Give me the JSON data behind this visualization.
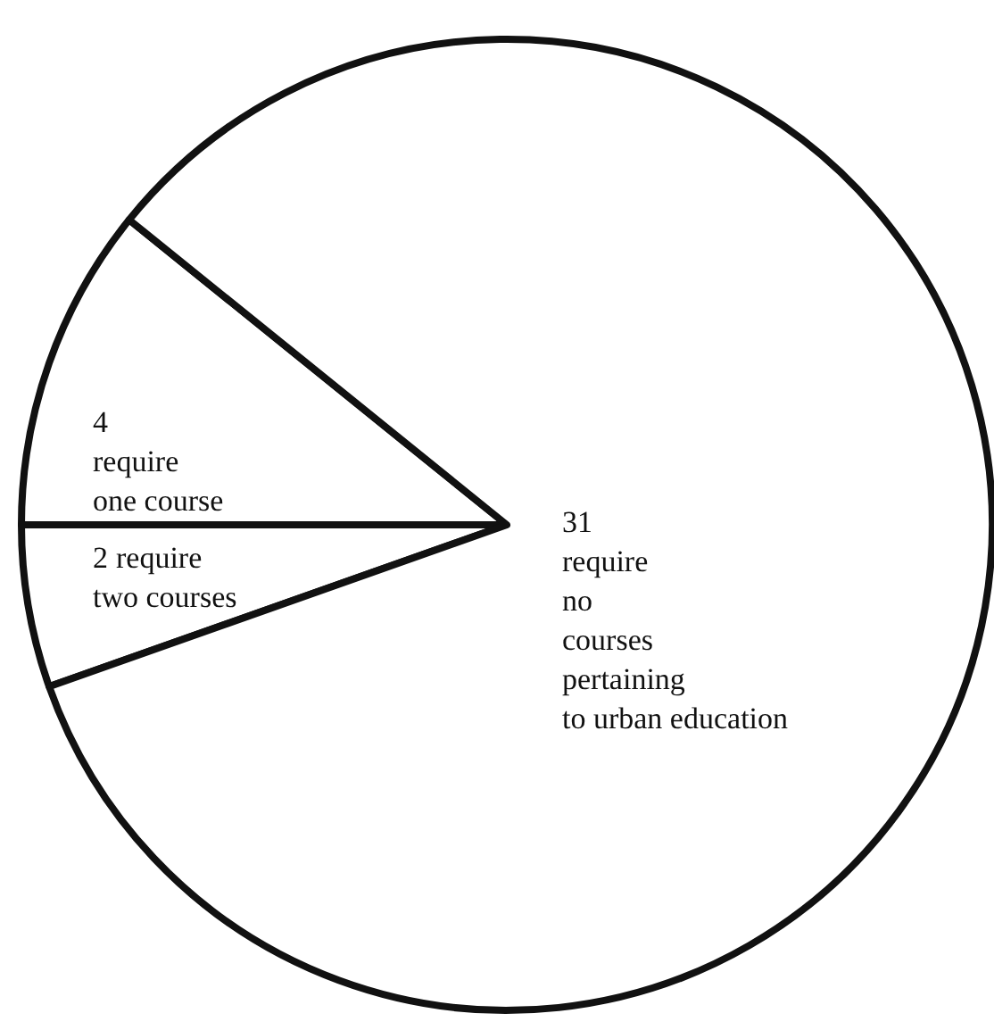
{
  "chart_data": {
    "type": "pie",
    "categories": [
      "require one course",
      "require two courses",
      "require no courses pertaining to urban education"
    ],
    "values": [
      4,
      2,
      31
    ],
    "colors": [
      "#ffffff",
      "#ffffff",
      "#ffffff"
    ],
    "data_labels": true
  }
}
